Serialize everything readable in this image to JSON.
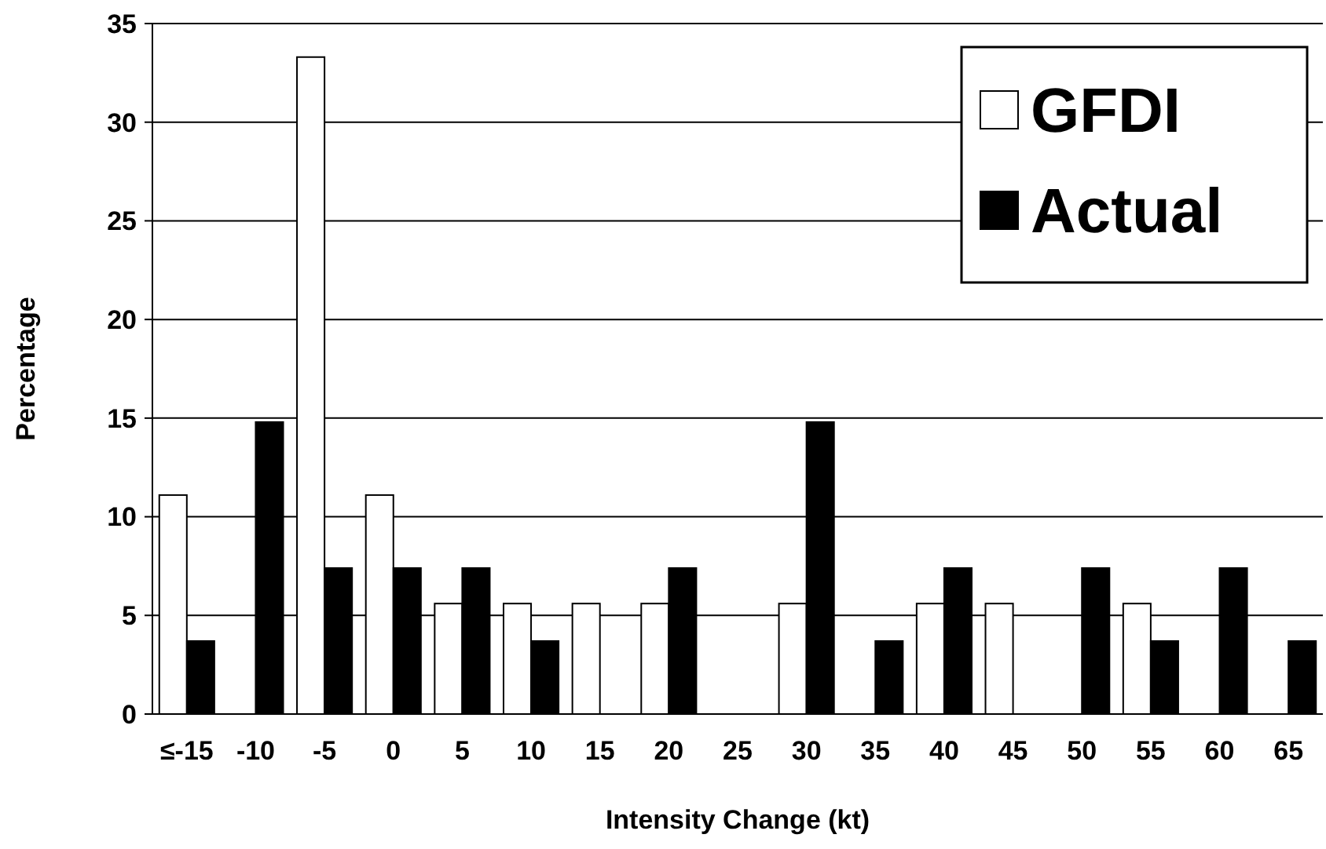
{
  "chart_data": {
    "type": "bar",
    "xlabel": "Intensity Change (kt)",
    "ylabel": "Percentage",
    "categories": [
      "≤-15",
      "-10",
      "-5",
      "0",
      "5",
      "10",
      "15",
      "20",
      "25",
      "30",
      "35",
      "40",
      "45",
      "50",
      "55",
      "60",
      "65"
    ],
    "series": [
      {
        "name": "GFDI",
        "color": "#ffffff",
        "values": [
          11.1,
          0,
          33.3,
          11.1,
          5.6,
          5.6,
          5.6,
          5.6,
          0,
          5.6,
          0,
          5.6,
          5.6,
          0,
          5.6,
          0,
          0
        ]
      },
      {
        "name": "Actual",
        "color": "#000000",
        "values": [
          3.7,
          14.8,
          7.4,
          7.4,
          7.4,
          3.7,
          0,
          7.4,
          0,
          14.8,
          3.7,
          7.4,
          0,
          7.4,
          3.7,
          7.4,
          3.7
        ]
      }
    ],
    "ylim": [
      0,
      35
    ],
    "yticks": [
      0,
      5,
      10,
      15,
      20,
      25,
      30,
      35
    ],
    "grid": "y",
    "legend": "top right"
  }
}
